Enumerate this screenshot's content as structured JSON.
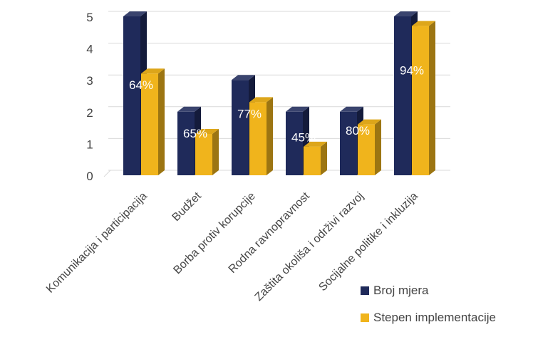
{
  "chart_data": {
    "type": "bar",
    "style": "3d-clustered-column",
    "categories": [
      "Komunikacija i participacija",
      "Budžet",
      "Borba protiv korupcije",
      "Rodna ravnopravnost",
      "Zaštita okoliša i održivi razvoj",
      "Socijalne politike i inkluzija"
    ],
    "series": [
      {
        "name": "Broj mjera",
        "values": [
          5,
          2,
          3,
          2,
          2,
          5
        ],
        "color": "#1f2a5a"
      },
      {
        "name": "Stepen implementacije",
        "values": [
          3.2,
          1.3,
          2.3,
          0.9,
          1.6,
          4.7
        ],
        "color": "#f0b41c"
      }
    ],
    "data_labels": [
      "64%",
      "65%",
      "77%",
      "45%",
      "80%",
      "94%"
    ],
    "yticks": [
      "0",
      "1",
      "2",
      "3",
      "4",
      "5"
    ],
    "ylim": [
      0,
      5
    ],
    "grid": true,
    "legend_position": "bottom-right"
  }
}
